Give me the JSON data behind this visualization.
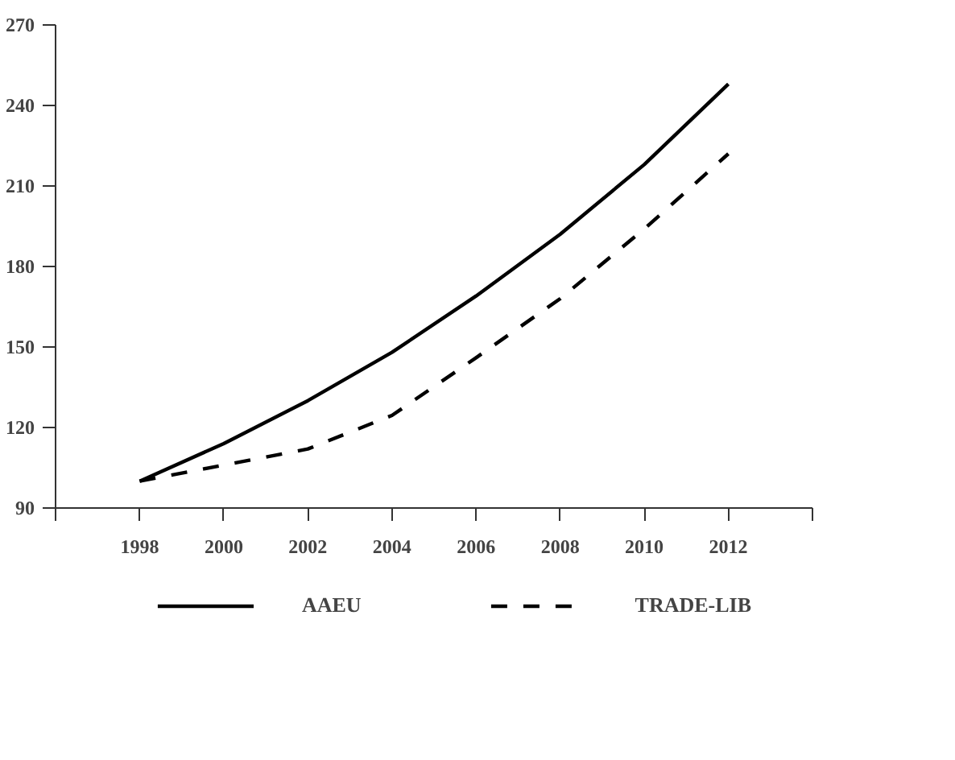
{
  "chart_data": {
    "type": "line",
    "x": [
      1998,
      2000,
      2002,
      2004,
      2006,
      2008,
      2010,
      2012
    ],
    "series": [
      {
        "name": "AAEU",
        "color": "#000000",
        "line_style": "solid",
        "values": [
          100,
          114,
          130,
          148,
          169,
          192,
          218,
          248
        ]
      },
      {
        "name": "TRADE-LIB",
        "color": "#000000",
        "line_style": "dashed",
        "values": [
          100,
          106,
          112,
          124.5,
          146,
          168,
          194,
          222
        ]
      }
    ],
    "xlim": [
      1996,
      2014
    ],
    "xticks": [
      {
        "value": 1996,
        "label": null
      },
      1998,
      2000,
      2002,
      2004,
      2006,
      2008,
      2010,
      2012,
      {
        "value": 2014,
        "label": null
      }
    ],
    "ylim": [
      90,
      270
    ],
    "yticks": [
      90,
      120,
      150,
      180,
      210,
      240,
      270
    ],
    "grid": false,
    "legend": "bottom",
    "marker": "none"
  }
}
